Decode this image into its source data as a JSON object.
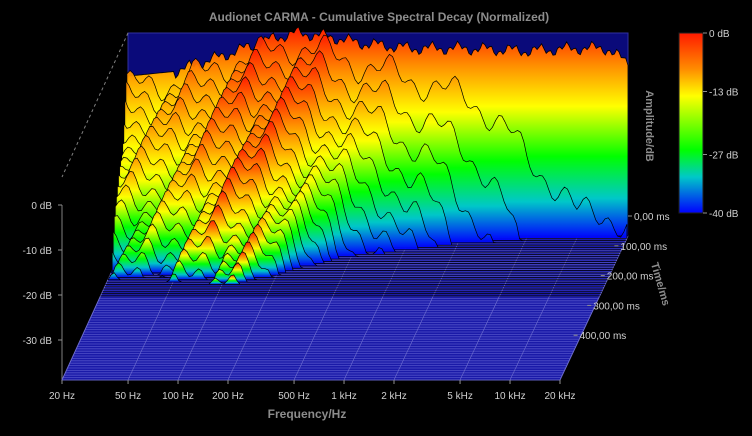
{
  "chart_data": {
    "type": "waterfall",
    "title": "Audionet CARMA - Cumulative Spectral Decay (Normalized)",
    "xlabel": "Frequency/Hz",
    "ylabel": "Amplitude/dB",
    "zlabel": "Time/ms",
    "x_scale": "log",
    "xlim": [
      20,
      20000
    ],
    "x_ticks": [
      {
        "value": 20,
        "label": "20 Hz"
      },
      {
        "value": 50,
        "label": "50 Hz"
      },
      {
        "value": 100,
        "label": "100 Hz"
      },
      {
        "value": 200,
        "label": "200 Hz"
      },
      {
        "value": 500,
        "label": "500 Hz"
      },
      {
        "value": 1000,
        "label": "1 kHz"
      },
      {
        "value": 2000,
        "label": "2 kHz"
      },
      {
        "value": 5000,
        "label": "5 kHz"
      },
      {
        "value": 10000,
        "label": "10 kHz"
      },
      {
        "value": 20000,
        "label": "20 kHz"
      }
    ],
    "ylim": [
      -40,
      0
    ],
    "y_ticks": [
      {
        "value": 0,
        "label": "0 dB"
      },
      {
        "value": -10,
        "label": "-10 dB"
      },
      {
        "value": -20,
        "label": "-20 dB"
      },
      {
        "value": -30,
        "label": "-30 dB"
      }
    ],
    "tlim": [
      0,
      500
    ],
    "t_ticks": [
      {
        "value": 0,
        "label": "0,00 ms"
      },
      {
        "value": 100,
        "label": "100,00 ms"
      },
      {
        "value": 200,
        "label": "200,00 ms"
      },
      {
        "value": 300,
        "label": "300,00 ms"
      },
      {
        "value": 400,
        "label": "400,00 ms"
      }
    ],
    "colorbar": {
      "ticks": [
        {
          "value": 0,
          "label": "0 dB"
        },
        {
          "value": -13,
          "label": "-13 dB"
        },
        {
          "value": -27,
          "label": "-27 dB"
        },
        {
          "value": -40,
          "label": "-40 dB"
        }
      ],
      "colors": [
        "#ff1a00",
        "#ff8c00",
        "#ffff00",
        "#00ff00",
        "#00c8c8",
        "#0000ff"
      ]
    },
    "initial_response": {
      "x": [
        20,
        40,
        100,
        150,
        200,
        300,
        500,
        1000,
        2000,
        5000,
        10000,
        15000,
        20000
      ],
      "y": [
        -8.5,
        -7.5,
        -3,
        -1,
        0,
        -0.5,
        -2,
        -3,
        -3,
        -3.5,
        -3,
        -3,
        -6
      ]
    },
    "decay": [
      {
        "x": 100,
        "db_start": 0,
        "decay_ms": 180
      },
      {
        "x": 150,
        "db_start": -1,
        "decay_ms": 160
      },
      {
        "x": 200,
        "db_start": 0,
        "decay_ms": 140
      },
      {
        "x": 300,
        "db_start": -2,
        "decay_ms": 110
      },
      {
        "x": 500,
        "db_start": -3,
        "decay_ms": 80
      },
      {
        "x": 700,
        "db_start": -3,
        "decay_ms": 70
      },
      {
        "x": 1000,
        "db_start": -3,
        "decay_ms": 55
      },
      {
        "x": 2000,
        "db_start": -4,
        "decay_ms": 35
      },
      {
        "x": 5000,
        "db_start": -5,
        "decay_ms": 15
      },
      {
        "x": 10000,
        "db_start": -6,
        "decay_ms": 10
      }
    ]
  }
}
